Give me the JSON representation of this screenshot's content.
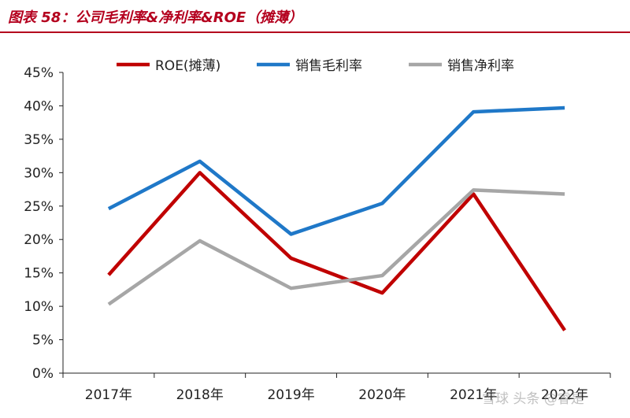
{
  "title": "图表 58：公司毛利率&净利率&ROE（摊薄）",
  "watermark": "雪球 头条 @睿是",
  "colors": {
    "roe": "#c00000",
    "gross": "#1f78c8",
    "net": "#a6a6a6",
    "title": "#b4001e"
  },
  "chart_data": {
    "type": "line",
    "categories": [
      "2017年",
      "2018年",
      "2019年",
      "2020年",
      "2021年",
      "2022年"
    ],
    "ylim": [
      0,
      45
    ],
    "yticks": [
      0,
      5,
      10,
      15,
      20,
      25,
      30,
      35,
      40,
      45
    ],
    "ytick_labels": [
      "0%",
      "5%",
      "10%",
      "15%",
      "20%",
      "25%",
      "30%",
      "35%",
      "40%",
      "45%"
    ],
    "legend_position": "top",
    "grid": false,
    "series": [
      {
        "key": "roe",
        "name": "ROE(摊薄)",
        "values": [
          14.7,
          30.0,
          17.2,
          12.0,
          26.8,
          6.4
        ]
      },
      {
        "key": "gross",
        "name": "销售毛利率",
        "values": [
          24.6,
          31.7,
          20.8,
          25.4,
          39.1,
          39.7
        ]
      },
      {
        "key": "net",
        "name": "销售净利率",
        "values": [
          10.3,
          19.8,
          12.7,
          14.6,
          27.4,
          26.8
        ]
      }
    ]
  }
}
